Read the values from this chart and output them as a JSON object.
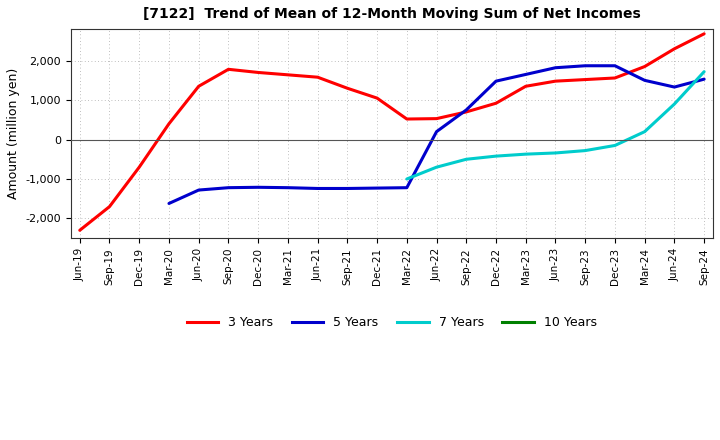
{
  "title": "[7122]  Trend of Mean of 12-Month Moving Sum of Net Incomes",
  "ylabel": "Amount (million yen)",
  "ylim": [
    -2500,
    2800
  ],
  "yticks": [
    -2000,
    -1000,
    0,
    1000,
    2000
  ],
  "background_color": "#ffffff",
  "plot_background": "#ffffff",
  "x_labels": [
    "Jun-19",
    "Sep-19",
    "Dec-19",
    "Mar-20",
    "Jun-20",
    "Sep-20",
    "Dec-20",
    "Mar-21",
    "Jun-21",
    "Sep-21",
    "Dec-21",
    "Mar-22",
    "Jun-22",
    "Sep-22",
    "Dec-22",
    "Mar-23",
    "Jun-23",
    "Sep-23",
    "Dec-23",
    "Mar-24",
    "Jun-24",
    "Sep-24"
  ],
  "series": {
    "3 Years": {
      "color": "#ff0000",
      "linewidth": 2.2,
      "data": [
        -2300,
        -1700,
        -700,
        400,
        1350,
        1780,
        1700,
        1640,
        1580,
        1300,
        1050,
        520,
        530,
        700,
        920,
        1350,
        1480,
        1520,
        1560,
        1850,
        2300,
        2680
      ]
    },
    "5 Years": {
      "color": "#0000cc",
      "linewidth": 2.2,
      "data": [
        null,
        null,
        null,
        -1620,
        -1280,
        -1220,
        -1210,
        -1220,
        -1240,
        -1240,
        -1230,
        -1220,
        200,
        750,
        1480,
        1650,
        1820,
        1870,
        1870,
        1500,
        1330,
        1530
      ]
    },
    "7 Years": {
      "color": "#00cccc",
      "linewidth": 2.2,
      "data": [
        null,
        null,
        null,
        null,
        null,
        null,
        null,
        null,
        null,
        null,
        null,
        -1000,
        -700,
        -500,
        -420,
        -370,
        -340,
        -280,
        -150,
        200,
        900,
        1720
      ]
    },
    "10 Years": {
      "color": "#008000",
      "linewidth": 2.2,
      "data": [
        null,
        null,
        null,
        null,
        null,
        null,
        null,
        null,
        null,
        null,
        null,
        null,
        null,
        null,
        null,
        null,
        null,
        null,
        null,
        null,
        null,
        null
      ]
    }
  },
  "legend_labels": [
    "3 Years",
    "5 Years",
    "7 Years",
    "10 Years"
  ],
  "legend_colors": [
    "#ff0000",
    "#0000cc",
    "#00cccc",
    "#008000"
  ]
}
